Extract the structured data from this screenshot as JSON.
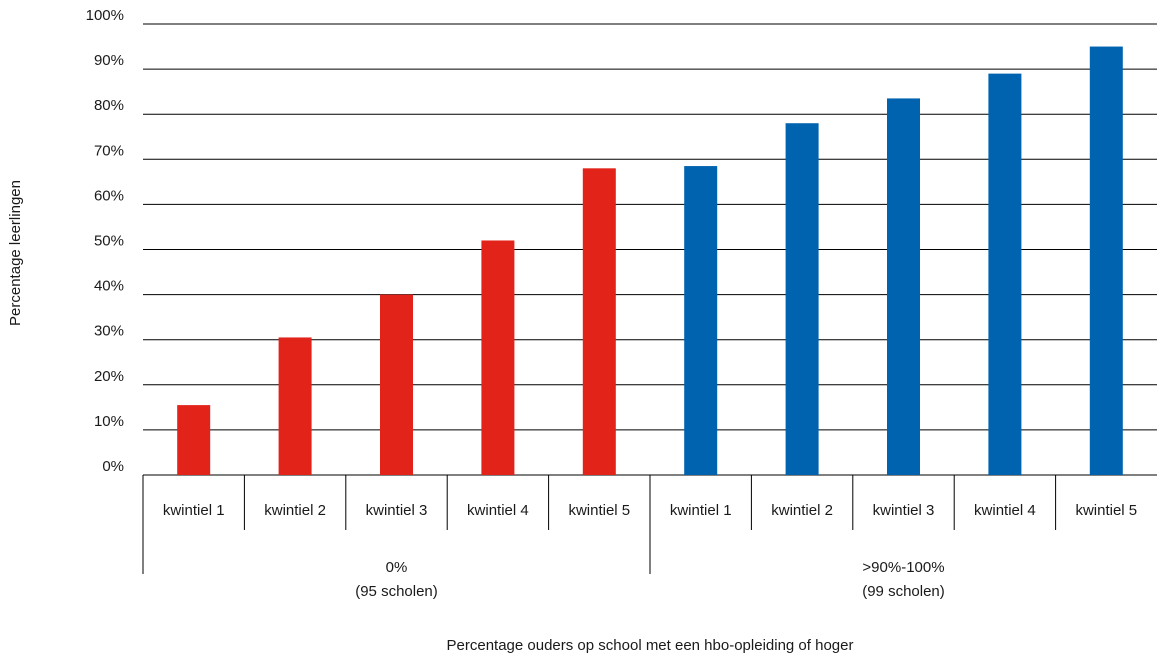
{
  "chart_data": {
    "type": "bar",
    "ylabel": "Percentage leerlingen",
    "xlabel": "Percentage ouders op school met een hbo-opleiding of hoger",
    "ylim": [
      0,
      100
    ],
    "yticks": [
      "0%",
      "10%",
      "20%",
      "30%",
      "40%",
      "50%",
      "60%",
      "70%",
      "80%",
      "90%",
      "100%"
    ],
    "grid": true,
    "groups": [
      {
        "label_line1": "0%",
        "label_line2": "(95 scholen)",
        "color": "#e2231a",
        "categories": [
          "kwintiel 1",
          "kwintiel 2",
          "kwintiel 3",
          "kwintiel 4",
          "kwintiel 5"
        ],
        "values": [
          15.5,
          30.5,
          40,
          52,
          68
        ]
      },
      {
        "label_line1": ">90%-100%",
        "label_line2": "(99 scholen)",
        "color": "#0063af",
        "categories": [
          "kwintiel 1",
          "kwintiel 2",
          "kwintiel 3",
          "kwintiel 4",
          "kwintiel 5"
        ],
        "values": [
          68.5,
          78,
          83.5,
          89,
          95
        ]
      }
    ]
  }
}
